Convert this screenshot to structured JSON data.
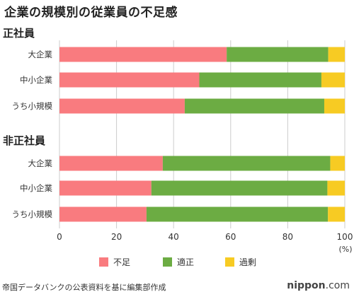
{
  "colors": {
    "shortage": "#f97b7f",
    "adequate": "#6cac43",
    "excess": "#f7cb23",
    "grid": "#cccccc",
    "text": "#333333"
  },
  "footer": {
    "source": "帝国データバンクの公表資料を基に編集部作成",
    "logo_main": "nippon",
    "logo_suffix": ".com"
  },
  "chart_data": {
    "type": "bar",
    "orientation": "horizontal",
    "stacked": true,
    "title": "企業の規模別の従業員の不足感",
    "xlim": [
      0,
      100
    ],
    "xticks": [
      "0",
      "20",
      "40",
      "60",
      "80",
      "100"
    ],
    "xunit": "(%)",
    "grid": true,
    "legend_position": "bottom",
    "legend": [
      {
        "label": "不足",
        "color": "#f97b7f"
      },
      {
        "label": "適正",
        "color": "#6cac43"
      },
      {
        "label": "過剰",
        "color": "#f7cb23"
      }
    ],
    "groups": [
      {
        "name": "正社員",
        "categories": [
          "大企業",
          "中小企業",
          "うち小規模"
        ],
        "series": [
          {
            "name": "不足",
            "values": [
              58.6,
              49.0,
              43.9
            ]
          },
          {
            "name": "適正",
            "values": [
              35.6,
              42.8,
              48.9
            ]
          },
          {
            "name": "過剰",
            "values": [
              5.8,
              8.2,
              7.2
            ]
          }
        ]
      },
      {
        "name": "非正社員",
        "categories": [
          "大企業",
          "中小企業",
          "うち小規模"
        ],
        "series": [
          {
            "name": "不足",
            "values": [
              36.2,
              32.2,
              30.5
            ]
          },
          {
            "name": "適正",
            "values": [
              58.7,
              61.7,
              63.6
            ]
          },
          {
            "name": "過剰",
            "values": [
              5.1,
              6.1,
              5.9
            ]
          }
        ]
      }
    ]
  }
}
